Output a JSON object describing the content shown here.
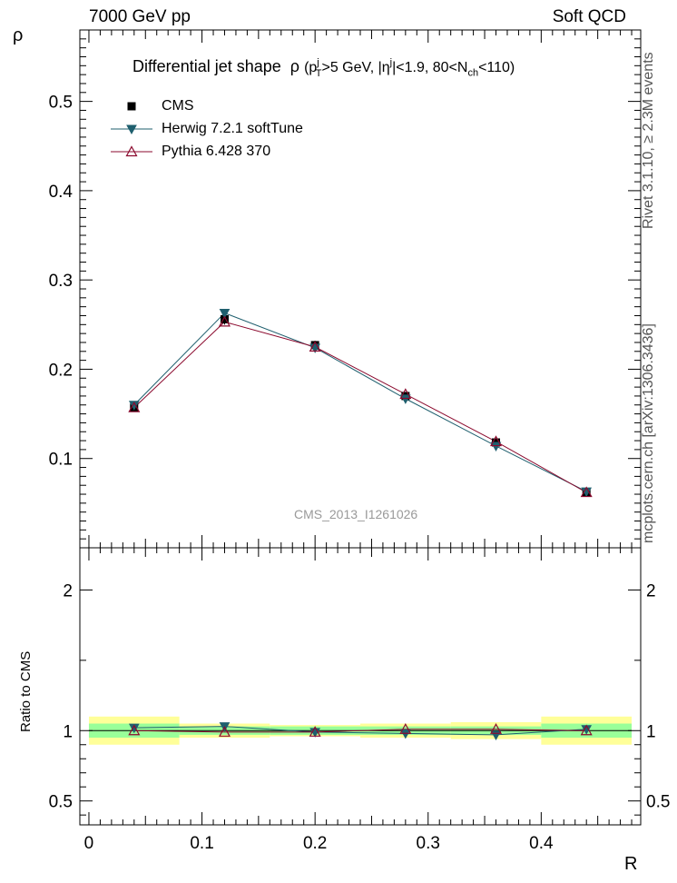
{
  "header": {
    "left": "7000 GeV pp",
    "right": "Soft QCD"
  },
  "side_labels": {
    "rivet": "Rivet 3.1.10, ≥ 2.3M events",
    "mcplots": "mcplots.cern.ch [arXiv:1306.3436]"
  },
  "watermark": "CMS_2013_I1261026",
  "title": {
    "main": "Differential jet shape",
    "rho": "ρ",
    "p": "(p",
    "p_sub": "T",
    "p_sup": "j",
    "mid1": ">5 GeV, |η",
    "eta_sup": "j",
    "mid2": "|<1.9, 80<N",
    "n_sub": "ch",
    "end": "<110)"
  },
  "legend": {
    "cms": "CMS",
    "herwig": "Herwig 7.2.1 softTune",
    "pythia": "Pythia 6.428 370"
  },
  "colors": {
    "cms": "#000000",
    "herwig": "#1f5f6e",
    "pythia": "#8b0a2e",
    "band_inner": "#99ff99",
    "band_outer": "#ffff99"
  },
  "chart_data": [
    {
      "type": "line",
      "name": "main",
      "ylabel": "ρ",
      "ylim": [
        0,
        0.58
      ],
      "yticks": [
        {
          "v": 0.1,
          "label": "0.1"
        },
        {
          "v": 0.2,
          "label": "0.2"
        },
        {
          "v": 0.3,
          "label": "0.3"
        },
        {
          "v": 0.4,
          "label": "0.4"
        },
        {
          "v": 0.5,
          "label": "0.5"
        }
      ],
      "x": [
        0.04,
        0.12,
        0.2,
        0.28,
        0.36,
        0.44
      ],
      "series": [
        {
          "name": "CMS",
          "values": [
            0.157,
            0.256,
            0.227,
            0.17,
            0.118,
            0.062
          ],
          "errors": [
            0.004,
            0.006,
            0.005,
            0.004,
            0.003,
            0.002
          ]
        },
        {
          "name": "Herwig 7.2.1 softTune",
          "values": [
            0.16,
            0.263,
            0.224,
            0.167,
            0.114,
            0.063
          ]
        },
        {
          "name": "Pythia 6.428 370",
          "values": [
            0.157,
            0.253,
            0.225,
            0.172,
            0.119,
            0.062
          ]
        }
      ]
    },
    {
      "type": "line",
      "name": "ratio",
      "ylabel": "Ratio to CMS",
      "ylim": [
        0.33,
        2.3
      ],
      "yticks": [
        {
          "v": 0.5,
          "label": "0.5"
        },
        {
          "v": 1,
          "label": "1"
        },
        {
          "v": 2,
          "label": "2"
        }
      ],
      "xlabel": "R",
      "xlim": [
        -0.008,
        0.488
      ],
      "xticks": [
        {
          "v": 0,
          "label": "0"
        },
        {
          "v": 0.1,
          "label": "0.1"
        },
        {
          "v": 0.2,
          "label": "0.2"
        },
        {
          "v": 0.3,
          "label": "0.3"
        },
        {
          "v": 0.4,
          "label": "0.4"
        }
      ],
      "x": [
        0.04,
        0.12,
        0.2,
        0.28,
        0.36,
        0.44
      ],
      "bin_edges": [
        0,
        0.08,
        0.16,
        0.24,
        0.32,
        0.4,
        0.48
      ],
      "band_inner": [
        0.05,
        0.03,
        0.03,
        0.03,
        0.03,
        0.05
      ],
      "band_outer": [
        0.1,
        0.05,
        0.04,
        0.05,
        0.06,
        0.1
      ],
      "series": [
        {
          "name": "Herwig 7.2.1 softTune",
          "values": [
            1.02,
            1.03,
            0.99,
            0.98,
            0.97,
            1.01
          ]
        },
        {
          "name": "Pythia 6.428 370",
          "values": [
            1.0,
            0.99,
            0.99,
            1.01,
            1.01,
            1.0
          ]
        }
      ]
    }
  ]
}
